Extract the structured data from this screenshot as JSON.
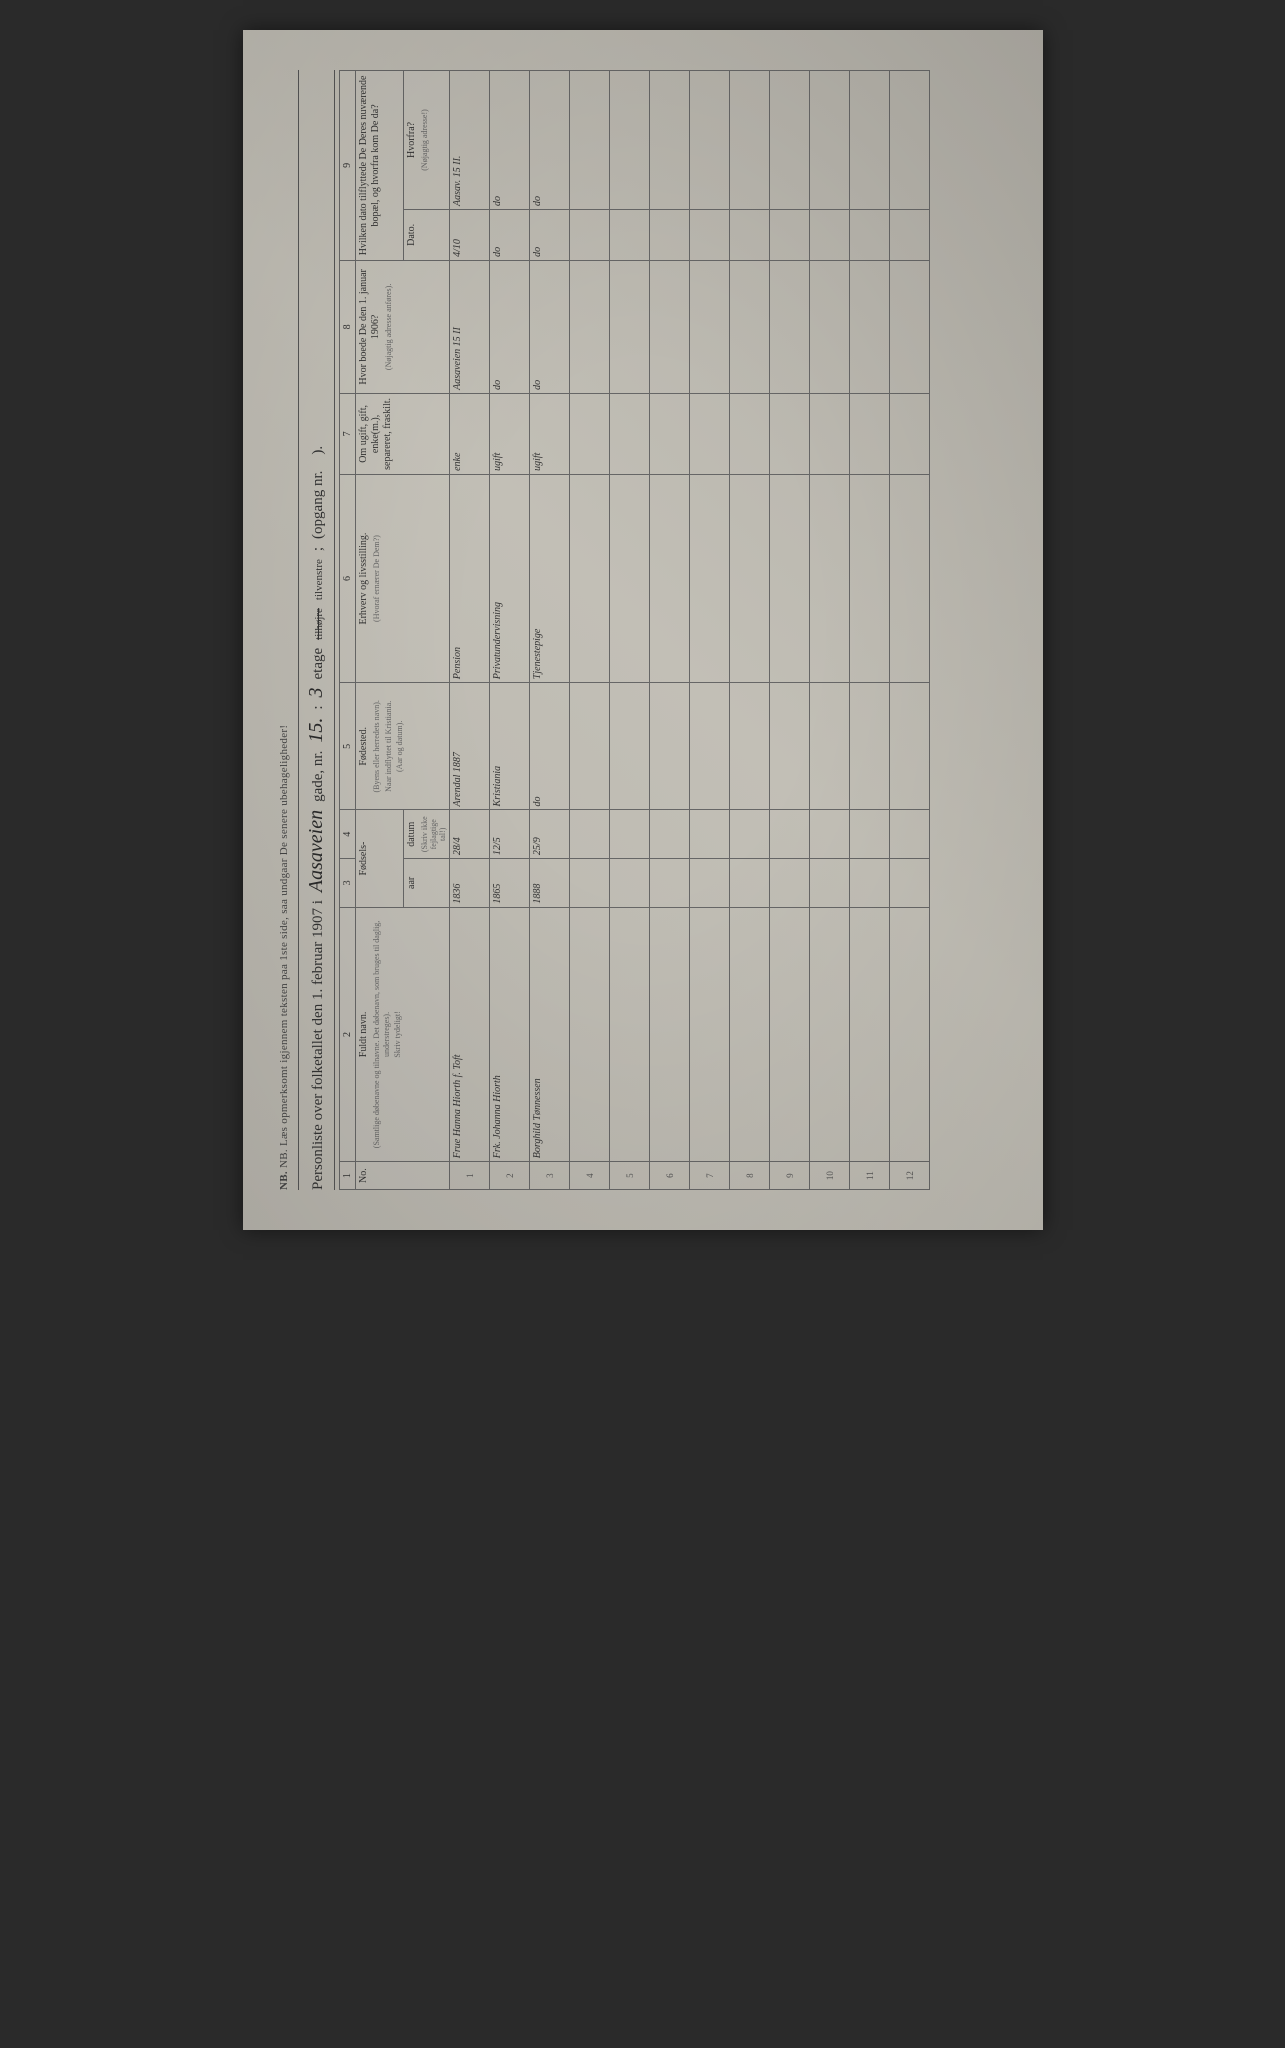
{
  "page": {
    "background_color": "#b8b5ad",
    "border_color": "#666",
    "text_color": "#333",
    "handwriting_color": "#1a1a1a"
  },
  "nb_line": "NB. Læs opmerksomt igjennem teksten paa 1ste side, saa undgaar De senere ubehageligheder!",
  "title": {
    "prefix": "Personliste over folketallet den 1. februar 1907 i",
    "street": "Aasaveien",
    "gade_label": "gade, nr.",
    "house_no": "15.",
    "etage_label": "etage",
    "etage_value": "3",
    "side_struck": "tilhøjre",
    "side": "tilvenstre",
    "opgang_label": "(opgang nr.",
    "opgang_value": "",
    "closing": ")."
  },
  "columns": {
    "numbers": [
      "1",
      "2",
      "3",
      "4",
      "5",
      "6",
      "7",
      "8",
      "9"
    ],
    "no": "No.",
    "name": "Fuldt navn.",
    "name_sub": "(Samtlige døbenavne og tilnavne. Det døbenavn, som bruges til daglig, understreges).",
    "name_sub2": "Skriv tydeligt!",
    "birth": "Fødsels-",
    "year": "aar",
    "day": "datum",
    "birth_sub": "(Skriv ikke fejlagtige tal!)",
    "birthplace": "Fødested.",
    "birthplace_sub": "(Byens eller herredets navn).",
    "birthplace_sub2": "Naar indflyttet til Kristiania.",
    "birthplace_sub3": "(Aar og datum).",
    "occupation": "Erhverv og livsstilling.",
    "occupation_sub": "(Hvoraf ernærer De Dem?)",
    "marital": "Om ugift, gift, enke(m.), separeret, fraskilt.",
    "addr1906": "Hvor boede De den 1. januar 1906?",
    "addr1906_sub": "(Nøjagtig adresse anføres).",
    "moved": "Hvilken dato tilflyttede De Deres nuværende bopæl, og hvorfra kom De da?",
    "moved_date": "Dato.",
    "moved_from": "Hvorfra?",
    "moved_from_sub": "(Nøjagtig adresse!)"
  },
  "rows": [
    {
      "no": "1",
      "name": "Frue Hanna Hiorth f. Toft",
      "year": "1836",
      "day": "28/4",
      "birthplace": "Arendal 1887",
      "occupation": "Pension",
      "marital": "enke",
      "addr1906": "Aasaveien 15 II",
      "moved_date": "4/10",
      "moved_from": "Aasav. 15 II."
    },
    {
      "no": "2",
      "name": "Frk. Johanna Hiorth",
      "year": "1865",
      "day": "12/5",
      "birthplace": "Kristiania",
      "occupation": "Privatundervisning",
      "marital": "ugift",
      "addr1906": "do",
      "moved_date": "do",
      "moved_from": "do"
    },
    {
      "no": "3",
      "name": "Borghild Tønnessen",
      "year": "1888",
      "day": "25/9",
      "birthplace": "do",
      "occupation": "Tjenestepige",
      "marital": "ugift",
      "addr1906": "do",
      "moved_date": "do",
      "moved_from": "do"
    },
    {
      "no": "4"
    },
    {
      "no": "5"
    },
    {
      "no": "6"
    },
    {
      "no": "7"
    },
    {
      "no": "8"
    },
    {
      "no": "9"
    },
    {
      "no": "10"
    },
    {
      "no": "11"
    },
    {
      "no": "12"
    }
  ]
}
